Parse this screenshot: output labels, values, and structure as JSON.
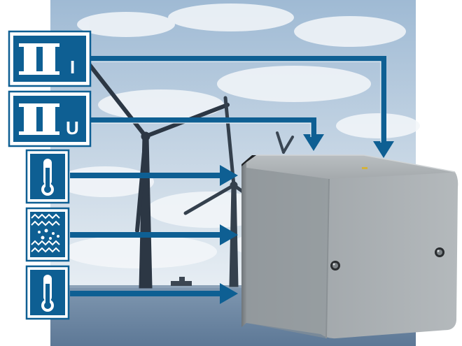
{
  "colors": {
    "accent": "#0e5f93",
    "icon_bg": "#ffffff",
    "sky_top": "#a9c2d9",
    "sky_bottom": "#dbe5ee",
    "sea": "#6e8aa6",
    "enclosure": "#9ea3a6"
  },
  "sensor_icons": [
    {
      "icon": "current-transformer-icon",
      "label": "I"
    },
    {
      "icon": "voltage-transformer-icon",
      "label": "U"
    },
    {
      "icon": "thermometer-icon",
      "label": ""
    },
    {
      "icon": "vibration-icon",
      "label": ""
    },
    {
      "icon": "thermometer-icon",
      "label": ""
    }
  ]
}
